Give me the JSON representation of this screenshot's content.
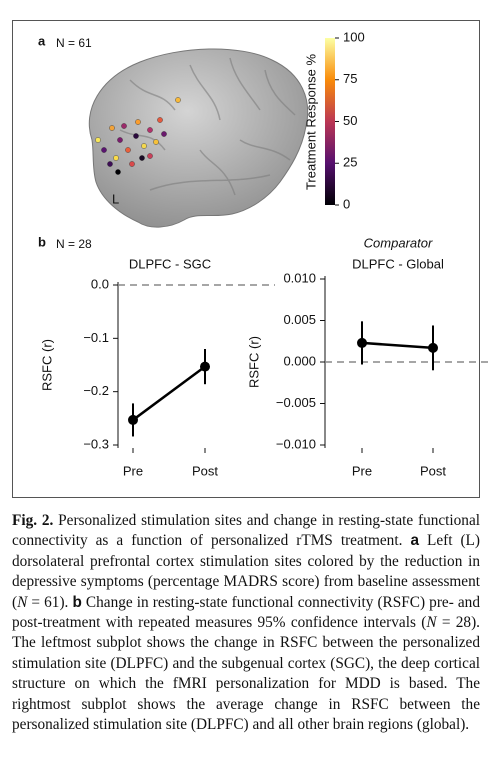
{
  "figure": {
    "panel_a": {
      "label": "a",
      "n": "N = 61",
      "region_label": "L",
      "colorbar": {
        "title": "Treatment Response %",
        "lim": [
          0,
          100
        ],
        "ticks": [
          0,
          25,
          50,
          75,
          100
        ]
      }
    },
    "panel_b": {
      "label": "b",
      "n": "N = 28"
    }
  },
  "chart_data": [
    {
      "type": "line",
      "title": "DLPFC - SGC",
      "ylabel": "RSFC (r)",
      "categories": [
        "Pre",
        "Post"
      ],
      "values": [
        -0.253,
        -0.153
      ],
      "errors": [
        0.031,
        0.033
      ],
      "color": "#000000",
      "ylim": [
        -0.3,
        0.0
      ],
      "yticks": [
        {
          "value": 0.0,
          "label": "0.0"
        },
        {
          "value": -0.1,
          "label": "−0.1"
        },
        {
          "value": -0.2,
          "label": "−0.2"
        },
        {
          "value": -0.3,
          "label": "−0.3"
        }
      ],
      "reference_line": 0.0
    },
    {
      "type": "line",
      "subtitle": "Comparator",
      "title": "DLPFC - Global",
      "ylabel": "RSFC (r)",
      "categories": [
        "Pre",
        "Post"
      ],
      "values": [
        0.0023,
        0.0017
      ],
      "errors": [
        0.0026,
        0.0027
      ],
      "color": "#000000",
      "ylim": [
        -0.01,
        0.01
      ],
      "yticks": [
        {
          "value": 0.01,
          "label": "0.010"
        },
        {
          "value": 0.005,
          "label": "0.005"
        },
        {
          "value": 0.0,
          "label": "0.000"
        },
        {
          "value": -0.005,
          "label": "−0.005"
        },
        {
          "value": -0.01,
          "label": "−0.010"
        }
      ],
      "reference_line": 0.0
    }
  ],
  "caption": {
    "label": "Fig. 2.",
    "segments": [
      " Personalized stimulation sites and change in resting-state functional connectivity as a function of personalized rTMS treatment. ",
      "a",
      " Left (L) dorsolateral prefrontal cortex stimulation sites colored by the reduction in depressive symptoms (percentage MADRS score) from baseline assessment (",
      "N",
      " = 61). ",
      "b",
      " Change in resting-state functional connectivity (RSFC) pre- and post-treatment with repeated measures 95% confidence intervals (",
      "N",
      " = 28). The leftmost subplot shows the change in RSFC between the personalized stimulation site (DLPFC) and the subgenual cortex (SGC), the deep cortical structure on which the fMRI personalization for MDD is based. The rightmost subplot shows the average change in RSFC between the personalized stimulation site (DLPFC) and all other brain regions (global)."
    ]
  }
}
